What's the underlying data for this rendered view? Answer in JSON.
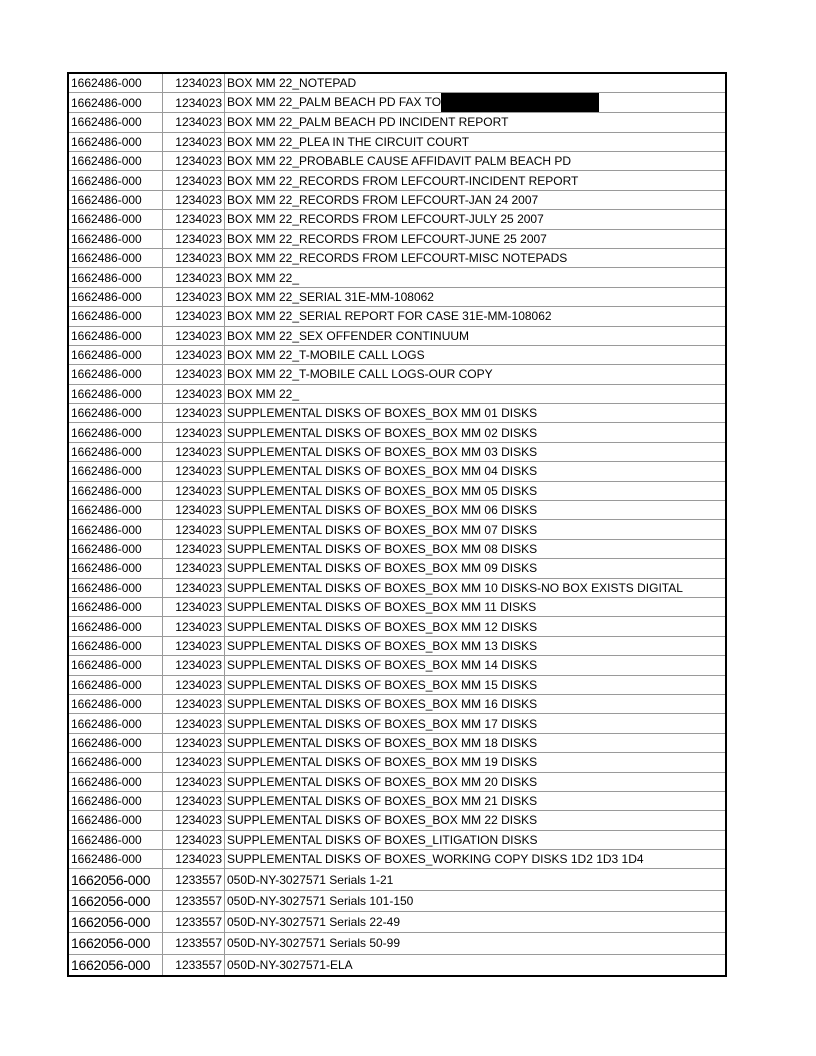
{
  "rows": [
    {
      "file": "1662486-000",
      "id": "1234023",
      "desc": "BOX MM 22_NOTEPAD"
    },
    {
      "file": "1662486-000",
      "id": "1234023",
      "desc": "BOX MM 22_PALM BEACH PD FAX TO",
      "redacted": true
    },
    {
      "file": "1662486-000",
      "id": "1234023",
      "desc": "BOX MM 22_PALM BEACH PD INCIDENT REPORT"
    },
    {
      "file": "1662486-000",
      "id": "1234023",
      "desc": "BOX MM 22_PLEA IN THE CIRCUIT COURT"
    },
    {
      "file": "1662486-000",
      "id": "1234023",
      "desc": "BOX MM 22_PROBABLE CAUSE AFFIDAVIT PALM BEACH PD"
    },
    {
      "file": "1662486-000",
      "id": "1234023",
      "desc": "BOX MM 22_RECORDS FROM LEFCOURT-INCIDENT REPORT"
    },
    {
      "file": "1662486-000",
      "id": "1234023",
      "desc": "BOX MM 22_RECORDS FROM LEFCOURT-JAN 24 2007"
    },
    {
      "file": "1662486-000",
      "id": "1234023",
      "desc": "BOX MM 22_RECORDS FROM LEFCOURT-JULY 25 2007"
    },
    {
      "file": "1662486-000",
      "id": "1234023",
      "desc": "BOX MM 22_RECORDS FROM LEFCOURT-JUNE 25 2007"
    },
    {
      "file": "1662486-000",
      "id": "1234023",
      "desc": "BOX MM 22_RECORDS FROM LEFCOURT-MISC NOTEPADS"
    },
    {
      "file": "1662486-000",
      "id": "1234023",
      "desc": "BOX MM 22_"
    },
    {
      "file": "1662486-000",
      "id": "1234023",
      "desc": "BOX MM 22_SERIAL 31E-MM-108062"
    },
    {
      "file": "1662486-000",
      "id": "1234023",
      "desc": "BOX MM 22_SERIAL REPORT FOR CASE 31E-MM-108062"
    },
    {
      "file": "1662486-000",
      "id": "1234023",
      "desc": "BOX MM 22_SEX OFFENDER CONTINUUM"
    },
    {
      "file": "1662486-000",
      "id": "1234023",
      "desc": "BOX MM 22_T-MOBILE CALL LOGS"
    },
    {
      "file": "1662486-000",
      "id": "1234023",
      "desc": "BOX MM 22_T-MOBILE CALL LOGS-OUR COPY"
    },
    {
      "file": "1662486-000",
      "id": "1234023",
      "desc": "BOX MM 22_"
    },
    {
      "file": "1662486-000",
      "id": "1234023",
      "desc": "SUPPLEMENTAL DISKS OF BOXES_BOX MM 01 DISKS"
    },
    {
      "file": "1662486-000",
      "id": "1234023",
      "desc": "SUPPLEMENTAL DISKS OF BOXES_BOX MM 02 DISKS"
    },
    {
      "file": "1662486-000",
      "id": "1234023",
      "desc": "SUPPLEMENTAL DISKS OF BOXES_BOX MM 03 DISKS"
    },
    {
      "file": "1662486-000",
      "id": "1234023",
      "desc": "SUPPLEMENTAL DISKS OF BOXES_BOX MM 04 DISKS"
    },
    {
      "file": "1662486-000",
      "id": "1234023",
      "desc": "SUPPLEMENTAL DISKS OF BOXES_BOX MM 05 DISKS"
    },
    {
      "file": "1662486-000",
      "id": "1234023",
      "desc": "SUPPLEMENTAL DISKS OF BOXES_BOX MM 06 DISKS"
    },
    {
      "file": "1662486-000",
      "id": "1234023",
      "desc": "SUPPLEMENTAL DISKS OF BOXES_BOX MM 07 DISKS"
    },
    {
      "file": "1662486-000",
      "id": "1234023",
      "desc": "SUPPLEMENTAL DISKS OF BOXES_BOX MM 08 DISKS"
    },
    {
      "file": "1662486-000",
      "id": "1234023",
      "desc": "SUPPLEMENTAL DISKS OF BOXES_BOX MM 09 DISKS"
    },
    {
      "file": "1662486-000",
      "id": "1234023",
      "desc": "SUPPLEMENTAL DISKS OF BOXES_BOX MM 10 DISKS-NO BOX EXISTS DIGITAL"
    },
    {
      "file": "1662486-000",
      "id": "1234023",
      "desc": "SUPPLEMENTAL DISKS OF BOXES_BOX MM 11 DISKS"
    },
    {
      "file": "1662486-000",
      "id": "1234023",
      "desc": "SUPPLEMENTAL DISKS OF BOXES_BOX MM 12 DISKS"
    },
    {
      "file": "1662486-000",
      "id": "1234023",
      "desc": "SUPPLEMENTAL DISKS OF BOXES_BOX MM 13 DISKS"
    },
    {
      "file": "1662486-000",
      "id": "1234023",
      "desc": "SUPPLEMENTAL DISKS OF BOXES_BOX MM 14 DISKS"
    },
    {
      "file": "1662486-000",
      "id": "1234023",
      "desc": "SUPPLEMENTAL DISKS OF BOXES_BOX MM 15 DISKS"
    },
    {
      "file": "1662486-000",
      "id": "1234023",
      "desc": "SUPPLEMENTAL DISKS OF BOXES_BOX MM 16 DISKS"
    },
    {
      "file": "1662486-000",
      "id": "1234023",
      "desc": "SUPPLEMENTAL DISKS OF BOXES_BOX MM 17 DISKS"
    },
    {
      "file": "1662486-000",
      "id": "1234023",
      "desc": "SUPPLEMENTAL DISKS OF BOXES_BOX MM 18 DISKS"
    },
    {
      "file": "1662486-000",
      "id": "1234023",
      "desc": "SUPPLEMENTAL DISKS OF BOXES_BOX MM 19 DISKS"
    },
    {
      "file": "1662486-000",
      "id": "1234023",
      "desc": "SUPPLEMENTAL DISKS OF BOXES_BOX MM 20 DISKS"
    },
    {
      "file": "1662486-000",
      "id": "1234023",
      "desc": "SUPPLEMENTAL DISKS OF BOXES_BOX MM 21 DISKS"
    },
    {
      "file": "1662486-000",
      "id": "1234023",
      "desc": "SUPPLEMENTAL DISKS OF BOXES_BOX MM 22 DISKS"
    },
    {
      "file": "1662486-000",
      "id": "1234023",
      "desc": "SUPPLEMENTAL DISKS OF BOXES_LITIGATION DISKS"
    },
    {
      "file": "1662486-000",
      "id": "1234023",
      "desc": "SUPPLEMENTAL DISKS OF BOXES_WORKING COPY DISKS 1D2 1D3 1D4"
    },
    {
      "file": "1662056-000",
      "id": "1233557",
      "desc": "050D-NY-3027571 Serials 1-21",
      "big": true
    },
    {
      "file": "1662056-000",
      "id": "1233557",
      "desc": "050D-NY-3027571 Serials 101-150",
      "big": true
    },
    {
      "file": "1662056-000",
      "id": "1233557",
      "desc": "050D-NY-3027571 Serials 22-49",
      "big": true
    },
    {
      "file": "1662056-000",
      "id": "1233557",
      "desc": "050D-NY-3027571 Serials 50-99",
      "big": true
    },
    {
      "file": "1662056-000",
      "id": "1233557",
      "desc": "050D-NY-3027571-ELA",
      "big": true
    }
  ]
}
